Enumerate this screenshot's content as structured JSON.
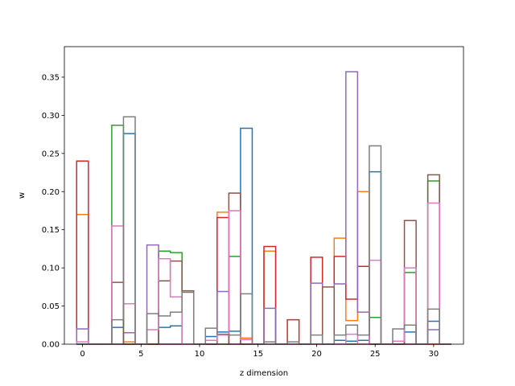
{
  "chart_data": {
    "type": "step",
    "xlabel": "z dimension",
    "ylabel": "w",
    "xlim": [
      -1.55,
      32.55
    ],
    "ylim": [
      0,
      0.39
    ],
    "xticks": [
      0,
      5,
      10,
      15,
      20,
      25,
      30
    ],
    "yticks": [
      0.0,
      0.05,
      0.1,
      0.15,
      0.2,
      0.25,
      0.3,
      0.35
    ],
    "x": [
      0,
      1,
      2,
      3,
      4,
      5,
      6,
      7,
      8,
      9,
      10,
      11,
      12,
      13,
      14,
      15,
      16,
      17,
      18,
      19,
      20,
      21,
      22,
      23,
      24,
      25,
      26,
      27,
      28,
      29,
      30,
      31
    ],
    "series": [
      {
        "color": "#1f77b4",
        "values": [
          0,
          0,
          0,
          0.022,
          0.276,
          0,
          0,
          0.022,
          0.024,
          0,
          0,
          0.01,
          0.016,
          0.017,
          0.283,
          0,
          0,
          0,
          0,
          0,
          0,
          0,
          0.005,
          0.004,
          0.005,
          0.226,
          0,
          0,
          0.016,
          0,
          0.03,
          0
        ]
      },
      {
        "color": "#ff7f0e",
        "values": [
          0.17,
          0,
          0,
          0,
          0.003,
          0,
          0,
          0,
          0,
          0,
          0,
          0,
          0.173,
          0,
          0.008,
          0,
          0.122,
          0,
          0,
          0,
          0,
          0,
          0.139,
          0.031,
          0.2,
          0,
          0,
          0,
          0,
          0,
          0,
          0
        ]
      },
      {
        "color": "#2ca02c",
        "values": [
          0,
          0,
          0,
          0.287,
          0,
          0,
          0,
          0.122,
          0.12,
          0,
          0,
          0,
          0,
          0.115,
          0,
          0,
          0,
          0,
          0,
          0,
          0,
          0,
          0,
          0,
          0,
          0.035,
          0,
          0,
          0.094,
          0,
          0.214,
          0
        ]
      },
      {
        "color": "#d62728",
        "values": [
          0.24,
          0,
          0,
          0,
          0,
          0,
          0,
          0,
          0,
          0,
          0,
          0,
          0.166,
          0,
          0,
          0,
          0.128,
          0,
          0.032,
          0,
          0.114,
          0,
          0.115,
          0.059,
          0.102,
          0,
          0,
          0,
          0,
          0,
          0,
          0
        ]
      },
      {
        "color": "#9467bd",
        "values": [
          0.02,
          0,
          0,
          0,
          0.015,
          0,
          0.13,
          0,
          0,
          0,
          0,
          0,
          0.069,
          0,
          0,
          0,
          0.047,
          0,
          0,
          0,
          0.08,
          0,
          0.079,
          0.357,
          0.042,
          0,
          0,
          0,
          0,
          0,
          0.019,
          0
        ]
      },
      {
        "color": "#8c564b",
        "values": [
          0,
          0,
          0,
          0.081,
          0,
          0,
          0,
          0.083,
          0.109,
          0.07,
          0,
          0,
          0,
          0.198,
          0,
          0,
          0,
          0,
          0,
          0,
          0,
          0.075,
          0,
          0,
          0,
          0,
          0,
          0,
          0.162,
          0,
          0.222,
          0
        ]
      },
      {
        "color": "#e377c2",
        "values": [
          0.003,
          0,
          0,
          0.155,
          0.053,
          0,
          0.019,
          0.112,
          0.062,
          0,
          0,
          0.005,
          0.012,
          0.175,
          0.006,
          0,
          0,
          0,
          0,
          0,
          0,
          0,
          0,
          0.013,
          0,
          0.11,
          0,
          0.004,
          0.1,
          0,
          0.185,
          0
        ]
      },
      {
        "color": "#7f7f7f",
        "values": [
          0,
          0,
          0,
          0.032,
          0.298,
          0,
          0.04,
          0.037,
          0.042,
          0.068,
          0,
          0.021,
          0.013,
          0.012,
          0.066,
          0,
          0.003,
          0,
          0.003,
          0,
          0.012,
          0,
          0.012,
          0.025,
          0.012,
          0.26,
          0,
          0.02,
          0.025,
          0,
          0.046,
          0
        ]
      }
    ]
  }
}
